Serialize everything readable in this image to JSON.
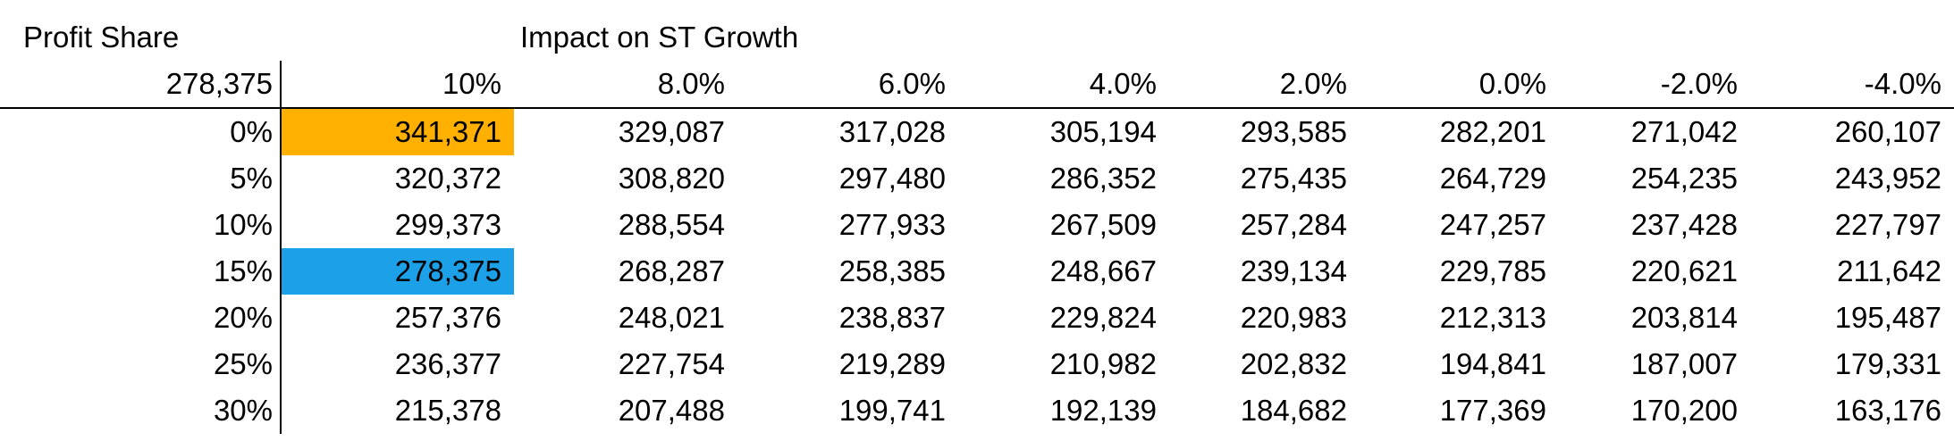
{
  "sheet": {
    "title_left": "Profit Share",
    "title_right": "Impact on ST Growth",
    "corner_value": "278,375",
    "column_headers": [
      "10%",
      "8.0%",
      "6.0%",
      "4.0%",
      "2.0%",
      "0.0%",
      "-2.0%",
      "-4.0%"
    ],
    "rows": [
      {
        "label": "0%",
        "values": [
          "341,371",
          "329,087",
          "317,028",
          "305,194",
          "293,585",
          "282,201",
          "271,042",
          "260,107"
        ]
      },
      {
        "label": "5%",
        "values": [
          "320,372",
          "308,820",
          "297,480",
          "286,352",
          "275,435",
          "264,729",
          "254,235",
          "243,952"
        ]
      },
      {
        "label": "10%",
        "values": [
          "299,373",
          "288,554",
          "277,933",
          "267,509",
          "257,284",
          "247,257",
          "237,428",
          "227,797"
        ]
      },
      {
        "label": "15%",
        "values": [
          "278,375",
          "268,287",
          "258,385",
          "248,667",
          "239,134",
          "229,785",
          "220,621",
          "211,642"
        ]
      },
      {
        "label": "20%",
        "values": [
          "257,376",
          "248,021",
          "238,837",
          "229,824",
          "220,983",
          "212,313",
          "203,814",
          "195,487"
        ]
      },
      {
        "label": "25%",
        "values": [
          "236,377",
          "227,754",
          "219,289",
          "210,982",
          "202,832",
          "194,841",
          "187,007",
          "179,331"
        ]
      },
      {
        "label": "30%",
        "values": [
          "215,378",
          "207,488",
          "199,741",
          "192,139",
          "184,682",
          "177,369",
          "170,200",
          "163,176"
        ]
      }
    ],
    "highlights": [
      {
        "row": 0,
        "col": 0,
        "color": "#FFB000"
      },
      {
        "row": 3,
        "col": 0,
        "color": "#1CA1E8"
      }
    ]
  }
}
